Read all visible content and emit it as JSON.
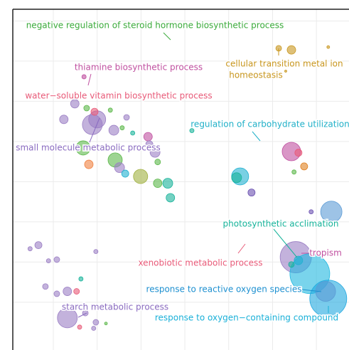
{
  "chart_data": {
    "type": "scatter",
    "xlim": [
      0.1,
      7.74
    ],
    "ylim": [
      -0.8,
      7.3
    ],
    "xticks": [
      1,
      2,
      3,
      4,
      5,
      6,
      7
    ],
    "yticks": [
      0,
      1,
      2,
      3,
      4,
      5,
      6,
      7
    ],
    "grid": true,
    "x": [
      6.14,
      6.43,
      7.27,
      6.3,
      1.7,
      1.49,
      1.89,
      2.0,
      1.24,
      1.76,
      1.94,
      2.3,
      2.67,
      2.38,
      2.57,
      2.81,
      3.16,
      3.19,
      1.68,
      1.81,
      2.41,
      2.51,
      2.99,
      3.32,
      3.38,
      2.64,
      3.61,
      3.38,
      3.67,
      4.16,
      5.26,
      5.18,
      5.52,
      6.43,
      6.59,
      6.72,
      6.49,
      6.88,
      7.34,
      6.53,
      6.85,
      7.27,
      7.21,
      6.59,
      6.43,
      0.66,
      0.47,
      0.89,
      1.08,
      1.63,
      0.82,
      1.08,
      1.32,
      1.53,
      1.32,
      1.73,
      1.97,
      1.92,
      1.6,
      1.97,
      1.92,
      2.2
    ],
    "y": [
      6.32,
      6.28,
      6.35,
      5.75,
      5.61,
      4.94,
      4.42,
      4.55,
      4.55,
      4.83,
      4.74,
      4.78,
      4.6,
      4.28,
      4.34,
      4.21,
      4.12,
      3.93,
      3.84,
      3.43,
      3.54,
      3.35,
      3.13,
      3.73,
      3.49,
      3.2,
      2.96,
      2.96,
      2.6,
      4.27,
      3.13,
      3.1,
      2.73,
      3.75,
      3.72,
      3.38,
      3.24,
      2.25,
      2.25,
      1.12,
      0.71,
      0.09,
      0.27,
      1.04,
      0.94,
      1.42,
      1.33,
      1.03,
      1.06,
      0.58,
      0.39,
      0.21,
      0.27,
      0.27,
      -0.39,
      -0.27,
      -0.5,
      -0.65,
      -0.62,
      1.26,
      -0.12,
      -0.53
    ],
    "sizes": [
      4,
      6,
      2,
      1.5,
      3,
      6,
      14,
      12,
      6,
      4,
      5,
      3,
      4,
      7,
      3,
      3,
      6,
      5,
      10,
      6,
      10,
      7,
      10,
      7,
      4,
      5,
      7,
      6,
      6,
      3,
      12,
      7,
      5,
      13,
      5,
      5,
      3,
      3,
      15,
      22,
      28,
      26,
      14,
      6,
      4,
      5,
      3,
      3,
      4,
      3,
      4,
      4,
      6,
      4,
      14,
      4,
      4,
      3,
      3,
      3,
      4,
      2
    ],
    "colors": [
      "#c8961e",
      "#c8961e",
      "#c8961e",
      "#c8961e",
      "#c050a0",
      "#9b7fc4",
      "#9b7fc4",
      "#9b7fc4",
      "#9b7fc4",
      "#5cb84a",
      "#e85a78",
      "#5cb84a",
      "#9b7fc4",
      "#9b7fc4",
      "#5cb84a",
      "#17b39a",
      "#c050a0",
      "#9b7fc4",
      "#5cb84a",
      "#f08040",
      "#5cb84a",
      "#9b7fc4",
      "#a0b040",
      "#9b7fc4",
      "#5cb84a",
      "#20b0d0",
      "#17b39a",
      "#5cb84a",
      "#17b39a",
      "#17b39a",
      "#20b0d0",
      "#17b39a",
      "#6a50b0",
      "#c050a0",
      "#e85a78",
      "#e08020",
      "#5cb84a",
      "#6a50b0",
      "#5b9bd5",
      "#9b7fc4",
      "#20b8e0",
      "#20a8e0",
      "#5b9bd5",
      "#20b0d0",
      "#17b39a",
      "#9b7fc4",
      "#9b7fc4",
      "#9b7fc4",
      "#9b7fc4",
      "#17b39a",
      "#9b7fc4",
      "#9b7fc4",
      "#9b7fc4",
      "#e85a78",
      "#9b7fc4",
      "#9b7fc4",
      "#9b7fc4",
      "#9b7fc4",
      "#e85a78",
      "#9b7fc4",
      "#c050a0",
      "#5cb84a"
    ],
    "annotations": [
      {
        "lines": [
          "negative regulation of steroid hormone biosynthetic process"
        ],
        "color": "#3aaa3a"
      },
      {
        "lines": [
          "cellular transition metal ion",
          "homeostasis"
        ],
        "color": "#c8961e"
      },
      {
        "lines": [
          "thiamine biosynthetic process"
        ],
        "color": "#c050a0"
      },
      {
        "lines": [
          "water−soluble vitamin biosynthetic process"
        ],
        "color": "#e85a78"
      },
      {
        "lines": [
          "regulation of carbohydrate utilization"
        ],
        "color": "#20b0c8"
      },
      {
        "lines": [
          "small molecule metabolic process"
        ],
        "color": "#8a6bc0"
      },
      {
        "lines": [
          "photosynthetic acclimation"
        ],
        "color": "#17b39a"
      },
      {
        "lines": [
          "tropism"
        ],
        "color": "#c050a0"
      },
      {
        "lines": [
          "xenobiotic metabolic process"
        ],
        "color": "#e85a78"
      },
      {
        "lines": [
          "response to reactive oxygen species"
        ],
        "color": "#1e90d0"
      },
      {
        "lines": [
          "response to oxygen−containing compound"
        ],
        "color": "#1ab0d8"
      },
      {
        "lines": [
          "starch metabolic process"
        ],
        "color": "#8a6bc0"
      }
    ]
  }
}
